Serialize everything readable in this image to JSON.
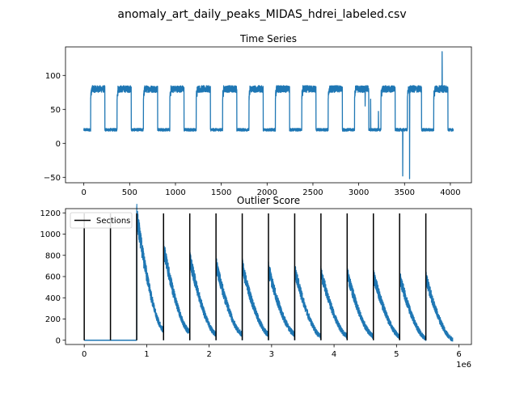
{
  "figure": {
    "suptitle": "anomaly_art_daily_peaks_MIDAS_hdrei_labeled.csv"
  },
  "colors": {
    "series": "#1f77b4",
    "sections": "#000000",
    "axes": "#000000"
  },
  "chart_data": [
    {
      "type": "line",
      "title": "Time Series",
      "xlim": [
        -200,
        4230
      ],
      "ylim": [
        -58,
        142
      ],
      "xticks": [
        0,
        500,
        1000,
        1500,
        2000,
        2500,
        3000,
        3500,
        4000
      ],
      "yticks": [
        -50,
        0,
        50,
        100
      ],
      "grid": false,
      "pattern": {
        "period": 288,
        "length": 4032,
        "high_start_offset": 75,
        "high_duration": 155,
        "base_level": 20,
        "base_noise": 2,
        "high_level": 80,
        "high_noise": 5,
        "step_level": 64
      },
      "anomalies": [
        {
          "x": 3070,
          "y": 55
        },
        {
          "x": 3130,
          "y": 65
        },
        {
          "x": 3215,
          "y": 47
        },
        {
          "x": 3480,
          "y": -48
        },
        {
          "x": 3555,
          "y": -52
        },
        {
          "x": 3910,
          "y": 135
        }
      ]
    },
    {
      "type": "line",
      "title": "Outlier Score",
      "xlim": [
        -300000,
        6200000
      ],
      "ylim": [
        -40,
        1240
      ],
      "xticks": [
        0,
        1000000,
        2000000,
        3000000,
        4000000,
        5000000,
        6000000
      ],
      "xtick_labels": [
        "0",
        "1",
        "2",
        "3",
        "4",
        "5",
        "6"
      ],
      "x_offset_label": "1e6",
      "yticks": [
        0,
        200,
        400,
        600,
        800,
        1000,
        1200
      ],
      "grid": false,
      "legend": {
        "position": "upper-left",
        "entries": [
          "Sections"
        ]
      },
      "sections": [
        0,
        420000,
        840000,
        1270000,
        1690000,
        2110000,
        2530000,
        2950000,
        3370000,
        3790000,
        4210000,
        4630000,
        5050000,
        5470000
      ],
      "sections_ymax": 1195,
      "flat_until": 840000,
      "flat_value": 0,
      "segments": [
        {
          "x0": 840000,
          "x1": 1270000,
          "peak": 1180,
          "end": 100
        },
        {
          "x0": 1270000,
          "x1": 1690000,
          "peak": 870,
          "end": 80
        },
        {
          "x0": 1690000,
          "x1": 2110000,
          "peak": 775,
          "end": 60
        },
        {
          "x0": 2110000,
          "x1": 2530000,
          "peak": 720,
          "end": 60
        },
        {
          "x0": 2530000,
          "x1": 2950000,
          "peak": 700,
          "end": 60
        },
        {
          "x0": 2950000,
          "x1": 3370000,
          "peak": 675,
          "end": 60
        },
        {
          "x0": 3370000,
          "x1": 3790000,
          "peak": 660,
          "end": 40
        },
        {
          "x0": 3790000,
          "x1": 4210000,
          "peak": 645,
          "end": 40
        },
        {
          "x0": 4210000,
          "x1": 4630000,
          "peak": 635,
          "end": 40
        },
        {
          "x0": 4630000,
          "x1": 5050000,
          "peak": 620,
          "end": 40
        },
        {
          "x0": 5050000,
          "x1": 5470000,
          "peak": 600,
          "end": 20
        },
        {
          "x0": 5470000,
          "x1": 5900000,
          "peak": 590,
          "end": 10
        }
      ]
    }
  ]
}
